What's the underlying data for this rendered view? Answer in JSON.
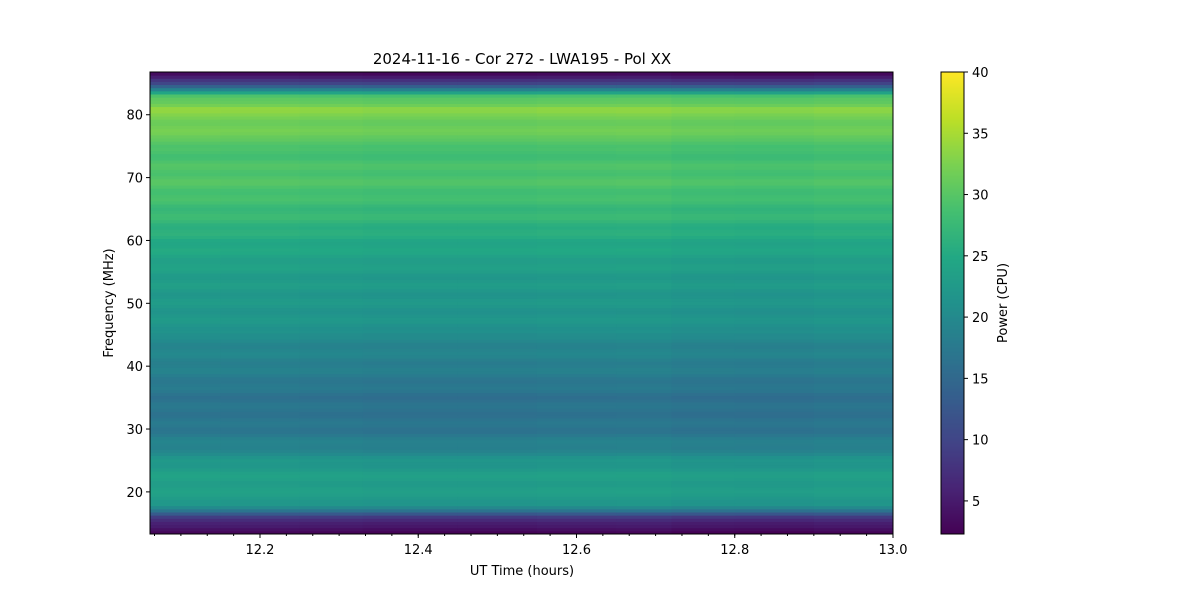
{
  "chart_data": {
    "type": "heatmap",
    "title": "2024-11-16 - Cor 272 - LWA195 - Pol XX",
    "xlabel": "UT Time (hours)",
    "ylabel": "Frequency (MHz)",
    "colorbar_label": "Power (CPU)",
    "colormap": "viridis",
    "xlim": [
      12.061,
      13.0
    ],
    "ylim": [
      13.3,
      86.8
    ],
    "clim": [
      2.3,
      40
    ],
    "xticks": [
      {
        "v": 12.2,
        "label": "12.2"
      },
      {
        "v": 12.4,
        "label": "12.4"
      },
      {
        "v": 12.6,
        "label": "12.6"
      },
      {
        "v": 12.8,
        "label": "12.8"
      },
      {
        "v": 13.0,
        "label": "13.0"
      }
    ],
    "xminor_step": 0.03333,
    "yticks": [
      {
        "v": 20,
        "label": "20"
      },
      {
        "v": 30,
        "label": "30"
      },
      {
        "v": 40,
        "label": "40"
      },
      {
        "v": 50,
        "label": "50"
      },
      {
        "v": 60,
        "label": "60"
      },
      {
        "v": 70,
        "label": "70"
      },
      {
        "v": 80,
        "label": "80"
      }
    ],
    "cticks": [
      {
        "v": 5,
        "label": "5"
      },
      {
        "v": 10,
        "label": "10"
      },
      {
        "v": 15,
        "label": "15"
      },
      {
        "v": 20,
        "label": "20"
      },
      {
        "v": 25,
        "label": "25"
      },
      {
        "v": 30,
        "label": "30"
      },
      {
        "v": 35,
        "label": "35"
      },
      {
        "v": 40,
        "label": "40"
      }
    ],
    "frequency_profile": {
      "freq_mhz": [
        13.3,
        14,
        15,
        16,
        17,
        18,
        19,
        20,
        22,
        25,
        26,
        30,
        35,
        40,
        45,
        45.5,
        50,
        55,
        60,
        62,
        63,
        65,
        68,
        70,
        72,
        75,
        76,
        78,
        80,
        81,
        82,
        83,
        84,
        85,
        86,
        86.8
      ],
      "power": [
        3,
        3.5,
        5,
        9,
        16,
        22,
        23,
        23,
        23.5,
        22,
        20,
        17,
        16.5,
        18.5,
        20,
        21.5,
        22,
        23,
        25,
        26,
        27,
        27.5,
        29,
        29.5,
        29,
        28.5,
        31,
        31.5,
        32,
        34,
        31,
        29,
        20,
        10,
        5,
        3
      ]
    },
    "time_columns": {
      "edges_hours": [
        12.061,
        12.15,
        12.25,
        12.33,
        12.45,
        12.55,
        12.65,
        12.72,
        12.8,
        12.9,
        13.0
      ],
      "power_offset": [
        0.3,
        0.2,
        0,
        -0.2,
        -0.2,
        0,
        0.1,
        -0.3,
        -0.4,
        -0.1
      ]
    }
  }
}
